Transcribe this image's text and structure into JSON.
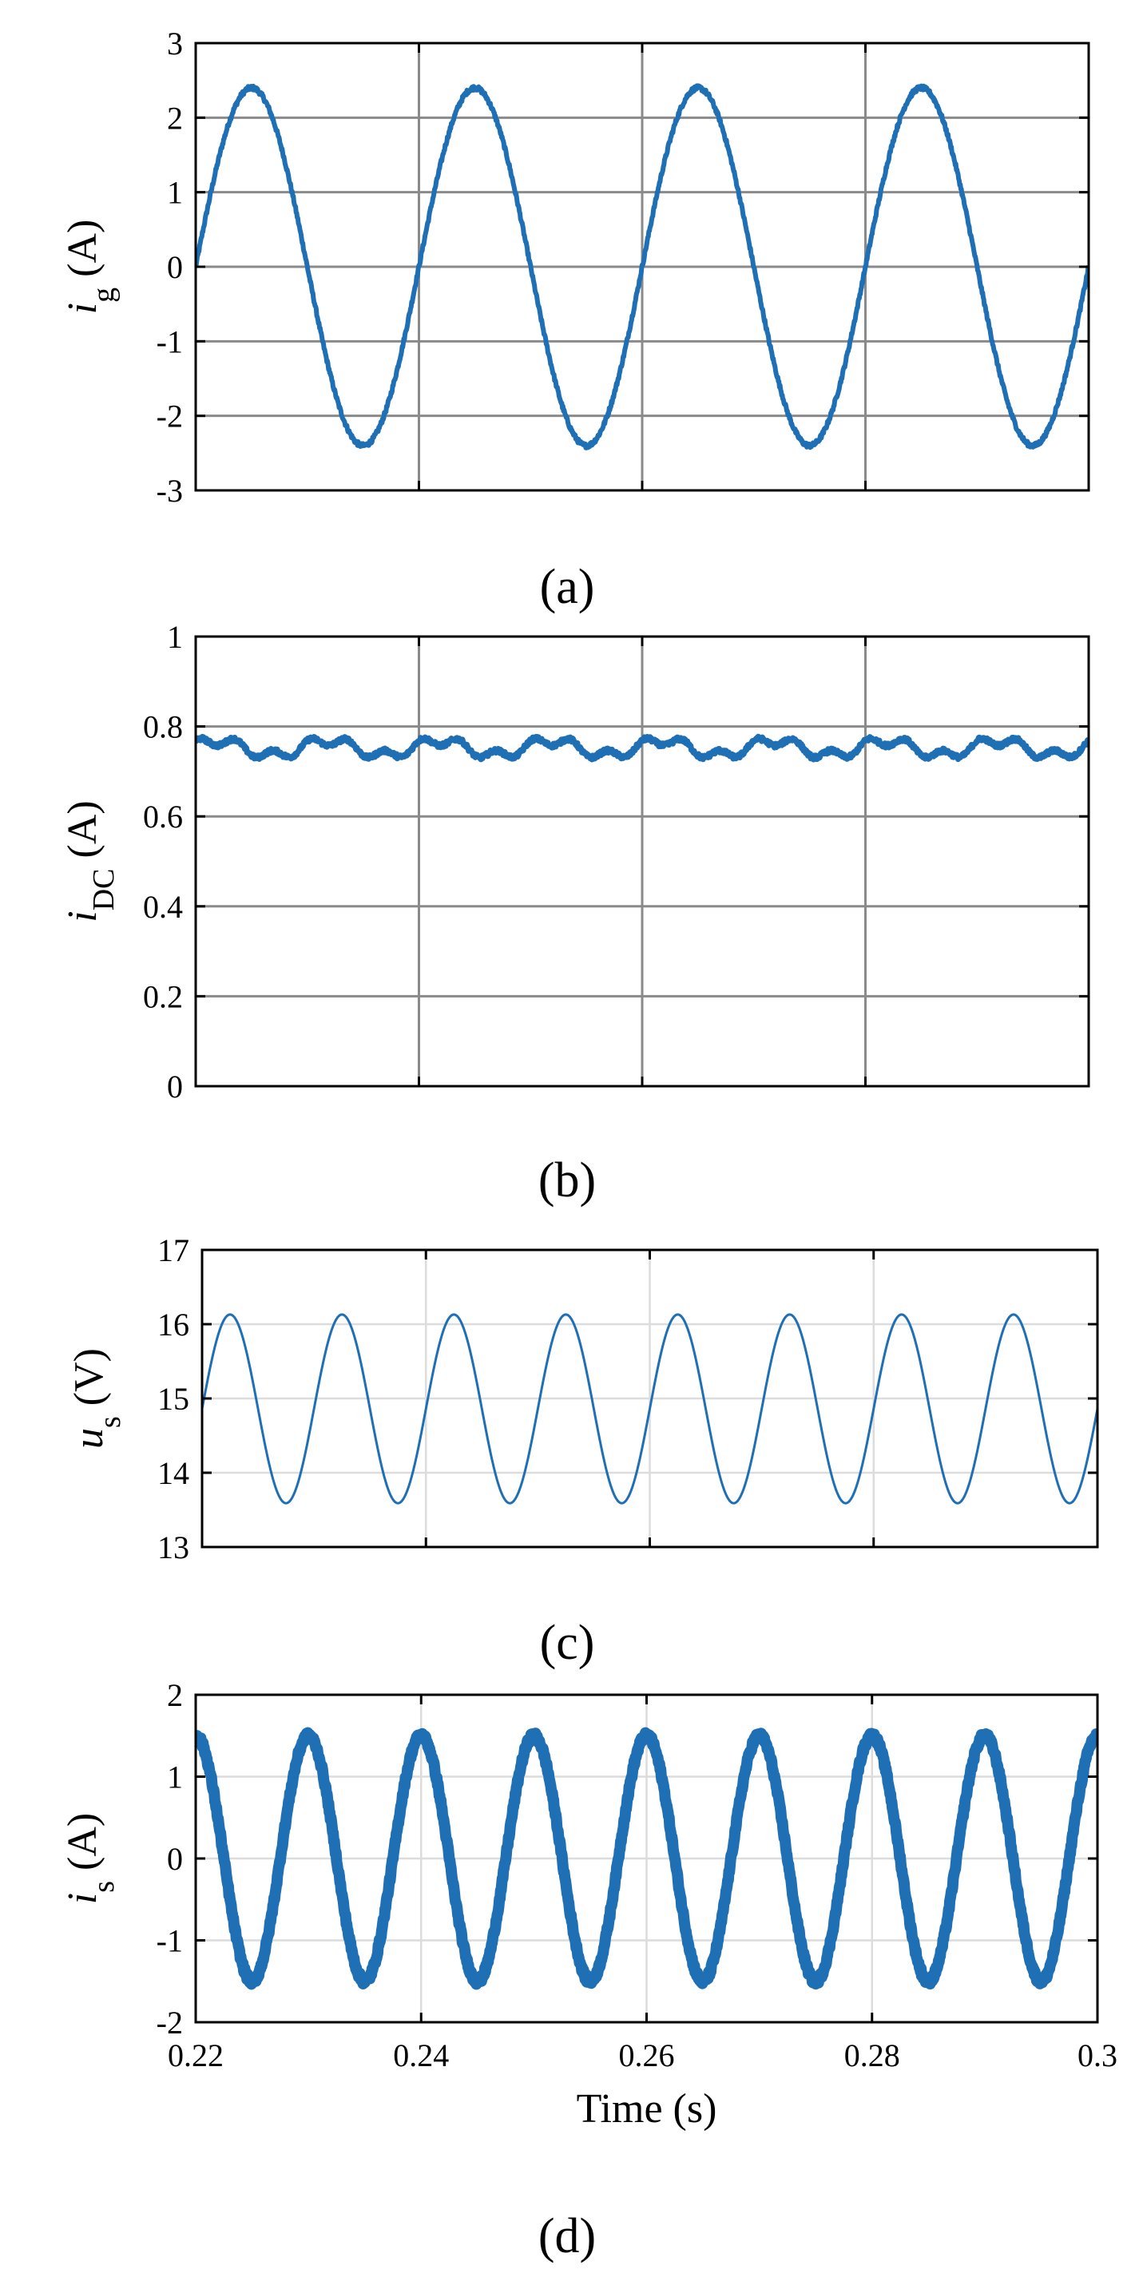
{
  "chart_data": [
    {
      "type": "line",
      "panel_label": "(a)",
      "ylabel": {
        "symbol": "i",
        "subscript": "g",
        "unit": "(A)"
      },
      "xlabel": "",
      "xlim": [
        0.22,
        0.3
      ],
      "ylim": [
        -3,
        3
      ],
      "x_ticks": [
        0.22,
        0.24,
        0.26,
        0.28,
        0.3
      ],
      "y_ticks": [
        "-3",
        "-2",
        "-1",
        "0",
        "1",
        "2",
        "3"
      ],
      "show_x_tick_labels": false,
      "grid": true,
      "grid_style": "dark",
      "series": [
        {
          "kind": "sine",
          "amplitude": 2.4,
          "offset": 0,
          "frequency_hz": 50,
          "peak_at": 0.225,
          "color": "#1f6fb5",
          "line_width": 6,
          "noise": 0.03
        }
      ]
    },
    {
      "type": "line",
      "panel_label": "(b)",
      "ylabel": {
        "symbol": "i",
        "subscript": "DC",
        "unit": "(A)"
      },
      "xlabel": "",
      "xlim": [
        0.22,
        0.3
      ],
      "ylim": [
        0,
        1
      ],
      "x_ticks": [
        0.22,
        0.24,
        0.26,
        0.28,
        0.3
      ],
      "y_ticks": [
        "0",
        "0.2",
        "0.4",
        "0.6",
        "0.8",
        "1"
      ],
      "show_x_tick_labels": false,
      "grid": true,
      "grid_style": "dark",
      "series": [
        {
          "kind": "ripple",
          "mean": 0.752,
          "ripple": 0.028,
          "frequency_hz": 100,
          "color": "#1f6fb5",
          "line_width": 7,
          "noise": 0.005
        }
      ]
    },
    {
      "type": "line",
      "panel_label": "(c)",
      "ylabel": {
        "symbol": "u",
        "subscript": "s",
        "unit": "(V)"
      },
      "xlabel": "",
      "xlim": [
        0.22,
        0.3
      ],
      "ylim": [
        13,
        17
      ],
      "x_ticks": [
        0.22,
        0.24,
        0.26,
        0.28,
        0.3
      ],
      "y_ticks": [
        "13",
        "14",
        "15",
        "16",
        "17"
      ],
      "show_x_tick_labels": false,
      "grid": true,
      "grid_style": "light",
      "series": [
        {
          "kind": "sine",
          "amplitude": 1.27,
          "offset": 14.86,
          "frequency_hz": 100,
          "peak_at": 0.2225,
          "color": "#1f6fb5",
          "line_width": 3,
          "noise": 0
        }
      ]
    },
    {
      "type": "line",
      "panel_label": "(d)",
      "ylabel": {
        "symbol": "i",
        "subscript": "s",
        "unit": "(A)"
      },
      "xlabel": "Time (s)",
      "xlim": [
        0.22,
        0.3
      ],
      "ylim": [
        -2,
        2
      ],
      "x_ticks": [
        0.22,
        0.24,
        0.26,
        0.28,
        0.3
      ],
      "x_tick_labels": [
        "0.22",
        "0.24",
        "0.26",
        "0.28",
        "0.3"
      ],
      "y_ticks": [
        "-2",
        "-1",
        "0",
        "1",
        "2"
      ],
      "show_x_tick_labels": true,
      "grid": true,
      "grid_style": "light",
      "series": [
        {
          "kind": "sine",
          "amplitude": 1.5,
          "offset": 0,
          "frequency_hz": 100,
          "peak_at": 0.22,
          "color": "#1f6fb5",
          "line_width": 14,
          "noise": 0.04
        }
      ]
    }
  ]
}
